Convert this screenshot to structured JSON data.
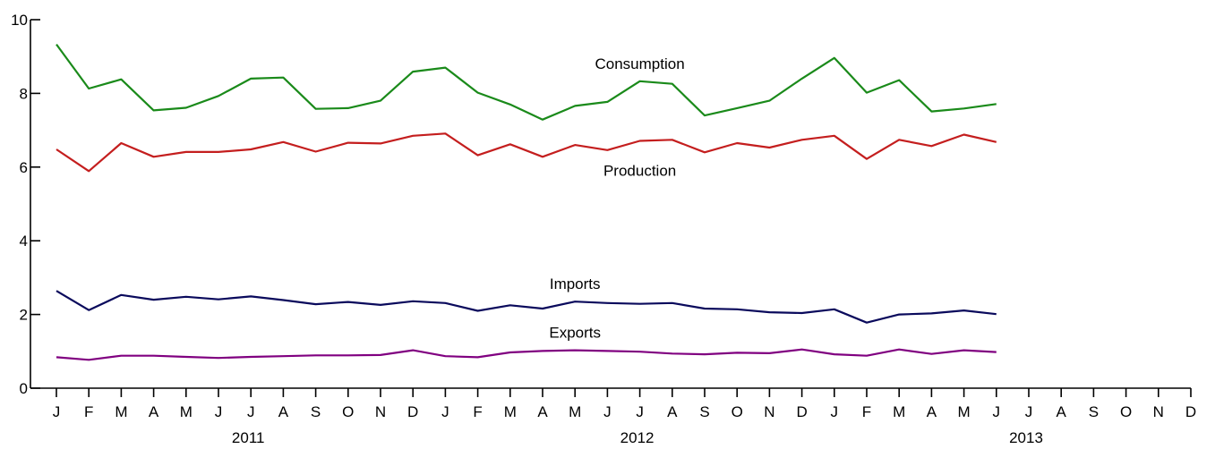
{
  "chart_data": {
    "type": "line",
    "title": "",
    "xlabel": "",
    "ylabel": "",
    "ylim": [
      0,
      10
    ],
    "yticks": [
      0,
      2,
      4,
      6,
      8,
      10
    ],
    "grid": false,
    "legend": "inline-labels",
    "x_month_labels": [
      "J",
      "F",
      "M",
      "A",
      "M",
      "J",
      "J",
      "A",
      "S",
      "O",
      "N",
      "D",
      "J",
      "F",
      "M",
      "A",
      "M",
      "J",
      "J",
      "A",
      "S",
      "O",
      "N",
      "D",
      "J",
      "F",
      "M",
      "A",
      "M",
      "J",
      "J",
      "A",
      "S",
      "O",
      "N",
      "D"
    ],
    "x_year_labels": [
      {
        "label": "2011",
        "month_index": 6
      },
      {
        "label": "2012",
        "month_index": 18
      },
      {
        "label": "2013",
        "month_index": 30
      }
    ],
    "series": [
      {
        "name": "Consumption",
        "color": "#1a8a1a",
        "label_at_month": 18,
        "label_offset": "above",
        "values": [
          9.33,
          8.13,
          8.38,
          7.54,
          7.61,
          7.93,
          8.4,
          8.43,
          7.58,
          7.6,
          7.8,
          8.59,
          8.7,
          8.02,
          7.7,
          7.29,
          7.66,
          7.77,
          8.33,
          8.26,
          7.4,
          7.6,
          7.8,
          8.4,
          8.96,
          8.02,
          8.36,
          7.51,
          7.59,
          7.71
        ]
      },
      {
        "name": "Production",
        "color": "#c41e1e",
        "label_at_month": 18,
        "label_offset": "below",
        "values": [
          6.48,
          5.89,
          6.65,
          6.28,
          6.41,
          6.41,
          6.48,
          6.68,
          6.42,
          6.66,
          6.64,
          6.85,
          6.91,
          6.32,
          6.62,
          6.28,
          6.6,
          6.46,
          6.71,
          6.74,
          6.4,
          6.65,
          6.53,
          6.74,
          6.85,
          6.22,
          6.74,
          6.57,
          6.88,
          6.68
        ]
      },
      {
        "name": "Imports",
        "color": "#0a0a5c",
        "label_at_month": 16,
        "label_offset": "above",
        "values": [
          2.64,
          2.12,
          2.53,
          2.4,
          2.48,
          2.41,
          2.49,
          2.39,
          2.28,
          2.34,
          2.26,
          2.36,
          2.31,
          2.1,
          2.25,
          2.16,
          2.35,
          2.31,
          2.29,
          2.31,
          2.16,
          2.14,
          2.06,
          2.04,
          2.14,
          1.78,
          2.0,
          2.03,
          2.11,
          2.01
        ]
      },
      {
        "name": "Exports",
        "color": "#800080",
        "label_at_month": 16,
        "label_offset": "above",
        "values": [
          0.84,
          0.77,
          0.88,
          0.88,
          0.85,
          0.82,
          0.85,
          0.87,
          0.89,
          0.89,
          0.9,
          1.03,
          0.87,
          0.84,
          0.97,
          1.01,
          1.03,
          1.01,
          0.99,
          0.94,
          0.92,
          0.96,
          0.95,
          1.05,
          0.92,
          0.88,
          1.05,
          0.93,
          1.03,
          0.98
        ]
      }
    ]
  }
}
